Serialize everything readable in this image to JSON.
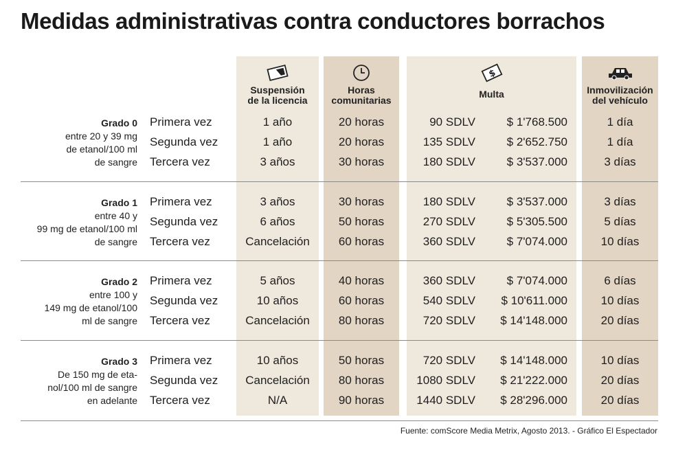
{
  "title": "Medidas administrativas contra conductores borrachos",
  "headers": {
    "suspension": [
      "Suspensión",
      "de la licencia"
    ],
    "horas": [
      "Horas",
      "comunitarias"
    ],
    "multa": [
      "Multa"
    ],
    "inmovilizacion": [
      "Inmovilización",
      "del vehículo"
    ]
  },
  "icons": {
    "suspension": "license-card-icon",
    "horas": "clock-icon",
    "multa": "money-bill-icon",
    "inmovilizacion": "car-icon"
  },
  "colors": {
    "column_light": "#efe8dd",
    "column_dark": "#e2d5c4"
  },
  "grades": [
    {
      "label": "Grado 0",
      "desc": [
        "entre 20 y 39 mg",
        "de etanol/100 ml",
        "de sangre"
      ],
      "rows": [
        {
          "vez": "Primera vez",
          "suspension": "1 año",
          "horas": "20 horas",
          "sdlv": "90 SDLV",
          "pesos": "$ 1'768.500",
          "inmov": "1 día"
        },
        {
          "vez": "Segunda vez",
          "suspension": "1 año",
          "horas": "20 horas",
          "sdlv": "135 SDLV",
          "pesos": "$ 2'652.750",
          "inmov": "1 día"
        },
        {
          "vez": "Tercera vez",
          "suspension": "3 años",
          "horas": "30 horas",
          "sdlv": "180 SDLV",
          "pesos": "$ 3'537.000",
          "inmov": "3 días"
        }
      ]
    },
    {
      "label": "Grado 1",
      "desc": [
        "entre 40 y",
        "99 mg de etanol/100 ml",
        "de sangre"
      ],
      "rows": [
        {
          "vez": "Primera vez",
          "suspension": "3 años",
          "horas": "30 horas",
          "sdlv": "180 SDLV",
          "pesos": "$ 3'537.000",
          "inmov": "3 días"
        },
        {
          "vez": "Segunda vez",
          "suspension": "6 años",
          "horas": "50 horas",
          "sdlv": "270 SDLV",
          "pesos": "$ 5'305.500",
          "inmov": "5 días"
        },
        {
          "vez": "Tercera vez",
          "suspension": "Cancelación",
          "horas": "60 horas",
          "sdlv": "360 SDLV",
          "pesos": "$ 7'074.000",
          "inmov": "10 días"
        }
      ]
    },
    {
      "label": "Grado 2",
      "desc": [
        "entre 100 y",
        "149 mg de etanol/100",
        "ml de sangre"
      ],
      "rows": [
        {
          "vez": "Primera vez",
          "suspension": "5 años",
          "horas": "40 horas",
          "sdlv": "360 SDLV",
          "pesos": "$ 7'074.000",
          "inmov": "6 días"
        },
        {
          "vez": "Segunda vez",
          "suspension": "10 años",
          "horas": "60 horas",
          "sdlv": "540 SDLV",
          "pesos": "$ 10'611.000",
          "inmov": "10 días"
        },
        {
          "vez": "Tercera vez",
          "suspension": "Cancelación",
          "horas": "80 horas",
          "sdlv": "720 SDLV",
          "pesos": "$ 14'148.000",
          "inmov": "20 días"
        }
      ]
    },
    {
      "label": "Grado 3",
      "desc": [
        "De 150 mg de eta-",
        "nol/100 ml de sangre",
        "en adelante"
      ],
      "rows": [
        {
          "vez": "Primera vez",
          "suspension": "10 años",
          "horas": "50 horas",
          "sdlv": "720 SDLV",
          "pesos": "$ 14'148.000",
          "inmov": "10 días"
        },
        {
          "vez": "Segunda vez",
          "suspension": "Cancelación",
          "horas": "80 horas",
          "sdlv": "1080 SDLV",
          "pesos": "$ 21'222.000",
          "inmov": "20 días"
        },
        {
          "vez": "Tercera vez",
          "suspension": "N/A",
          "horas": "90 horas",
          "sdlv": "1440 SDLV",
          "pesos": "$ 28'296.000",
          "inmov": "20 días"
        }
      ]
    }
  ],
  "source": "Fuente: comScore Media Metrix, Agosto 2013. - Gráfico El Espectador"
}
